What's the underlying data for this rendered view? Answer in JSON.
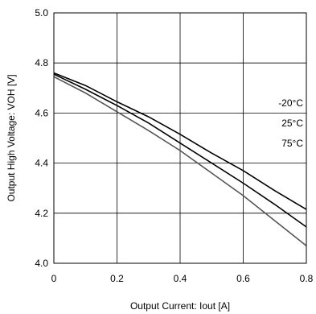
{
  "chart_data": {
    "type": "line",
    "xlabel": "Output Current: Iout [A]",
    "ylabel": "Output High Voltage: VOH [V]",
    "xlim": [
      0,
      0.8
    ],
    "ylim": [
      4.0,
      5.0
    ],
    "xticks": [
      0,
      0.2,
      0.4,
      0.6,
      0.8
    ],
    "xtick_labels": [
      "0",
      "0.2",
      "0.4",
      "0.6",
      "0.8"
    ],
    "yticks": [
      4.0,
      4.2,
      4.4,
      4.6,
      4.8,
      5.0
    ],
    "ytick_labels": [
      "4.0",
      "4.2",
      "4.4",
      "4.6",
      "4.8",
      "5.0"
    ],
    "grid": true,
    "legend_position": "right",
    "series": [
      {
        "name": "-20°C",
        "color": "#000000",
        "x": [
          0,
          0.1,
          0.2,
          0.3,
          0.4,
          0.5,
          0.6,
          0.7,
          0.8
        ],
        "y": [
          4.76,
          4.71,
          4.645,
          4.585,
          4.515,
          4.44,
          4.37,
          4.29,
          4.215
        ]
      },
      {
        "name": "25°C",
        "color": "#000000",
        "x": [
          0,
          0.1,
          0.2,
          0.3,
          0.4,
          0.5,
          0.6,
          0.7,
          0.8
        ],
        "y": [
          4.755,
          4.695,
          4.63,
          4.56,
          4.48,
          4.4,
          4.32,
          4.235,
          4.145
        ]
      },
      {
        "name": "75°C",
        "color": "#555555",
        "x": [
          0,
          0.1,
          0.2,
          0.3,
          0.4,
          0.5,
          0.6,
          0.7,
          0.8
        ],
        "y": [
          4.745,
          4.68,
          4.605,
          4.53,
          4.45,
          4.36,
          4.27,
          4.17,
          4.07
        ]
      }
    ]
  }
}
